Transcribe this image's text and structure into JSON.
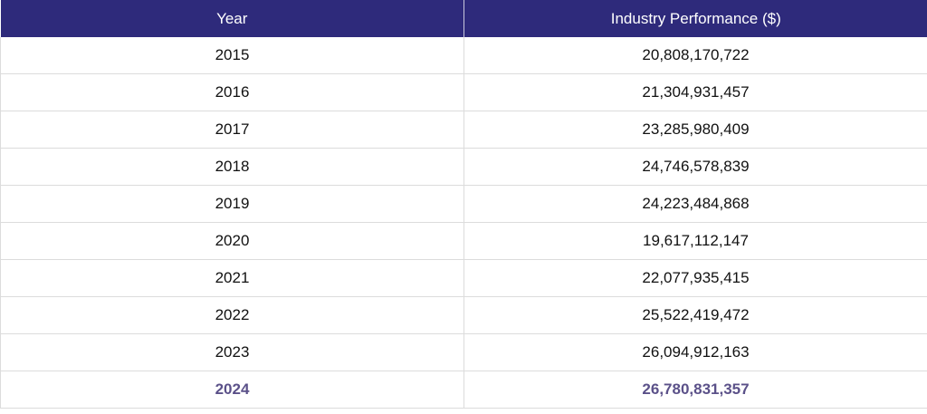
{
  "table": {
    "columns": [
      "Year",
      "Industry Performance ($)"
    ],
    "rows": [
      [
        "2015",
        "20,808,170,722"
      ],
      [
        "2016",
        "21,304,931,457"
      ],
      [
        "2017",
        "23,285,980,409"
      ],
      [
        "2018",
        "24,746,578,839"
      ],
      [
        "2019",
        "24,223,484,868"
      ],
      [
        "2020",
        "19,617,112,147"
      ],
      [
        "2021",
        "22,077,935,415"
      ],
      [
        "2022",
        "25,522,419,472"
      ],
      [
        "2023",
        "26,094,912,163"
      ],
      [
        "2024",
        "26,780,831,357"
      ]
    ],
    "highlighted_row": "2024"
  },
  "colors": {
    "header_bg": "#2e2a7b",
    "header_text": "#ffffff",
    "highlight_text": "#5b5189"
  }
}
